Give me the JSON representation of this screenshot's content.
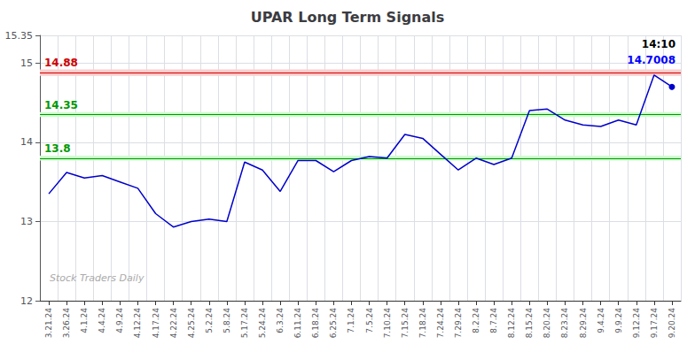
{
  "chart_data": {
    "type": "line",
    "title": "UPAR Long Term Signals",
    "categories": [
      "3.21.24",
      "3.26.24",
      "4.1.24",
      "4.4.24",
      "4.9.24",
      "4.12.24",
      "4.17.24",
      "4.22.24",
      "4.25.24",
      "5.2.24",
      "5.8.24",
      "5.17.24",
      "5.24.24",
      "6.3.24",
      "6.11.24",
      "6.18.24",
      "6.25.24",
      "7.1.24",
      "7.5.24",
      "7.10.24",
      "7.15.24",
      "7.18.24",
      "7.24.24",
      "7.29.24",
      "8.2.24",
      "8.7.24",
      "8.12.24",
      "8.15.24",
      "8.20.24",
      "8.23.24",
      "8.29.24",
      "9.4.24",
      "9.9.24",
      "9.12.24",
      "9.17.24",
      "9.20.24"
    ],
    "values": [
      13.35,
      13.62,
      13.55,
      13.58,
      13.5,
      13.42,
      13.1,
      12.93,
      13.0,
      13.03,
      13.0,
      13.75,
      13.65,
      13.38,
      13.77,
      13.77,
      13.63,
      13.77,
      13.82,
      13.8,
      14.1,
      14.05,
      13.85,
      13.65,
      13.8,
      13.72,
      13.8,
      14.4,
      14.42,
      14.28,
      14.22,
      14.2,
      14.28,
      14.22,
      14.85,
      14.7
    ],
    "color": "#0000cc",
    "ylim": [
      12,
      15.35
    ],
    "yticks": [
      12,
      13,
      14,
      15
    ],
    "grid": true,
    "reference_lines": [
      {
        "y": 14.88,
        "label": "14.88",
        "color": "#cc0000",
        "band_half": 0.04,
        "band_color": "#ffcccc"
      },
      {
        "y": 14.35,
        "label": "14.35",
        "color": "#009900",
        "band_half": 0.03,
        "band_color": "#ccffcc"
      },
      {
        "y": 13.8,
        "label": "13.8",
        "color": "#009900",
        "band_half": 0.03,
        "band_color": "#ccffcc"
      }
    ],
    "annotations": [
      {
        "text": "14:10",
        "color": "#000000"
      },
      {
        "text": "14.7008",
        "color": "#0000ff"
      }
    ],
    "watermark": "Stock Traders Daily"
  }
}
